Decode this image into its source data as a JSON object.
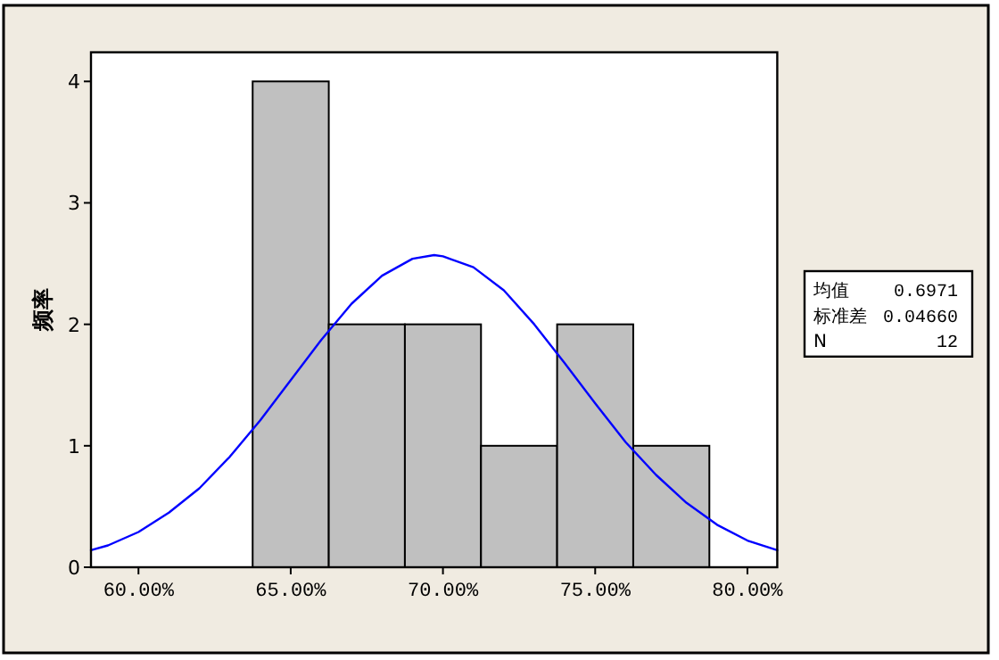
{
  "chart_data": {
    "type": "histogram",
    "ylabel": "频率",
    "series": [
      {
        "bins": [
          63.75,
          66.25,
          68.75,
          71.25,
          73.75,
          76.25,
          78.75
        ],
        "values": [
          4,
          2,
          2,
          1,
          2,
          1
        ],
        "color": "#c0c0c0"
      },
      {
        "type": "line",
        "color": "#0000ff",
        "x": [
          58.44,
          59,
          60,
          61,
          62,
          63,
          64,
          65,
          66,
          67,
          68,
          69,
          69.71,
          70,
          71,
          72,
          73,
          74,
          75,
          76,
          77,
          78,
          79,
          80,
          80.98
        ],
        "values": [
          0.14,
          0.18,
          0.29,
          0.45,
          0.65,
          0.91,
          1.21,
          1.54,
          1.87,
          2.17,
          2.4,
          2.54,
          2.57,
          2.56,
          2.47,
          2.28,
          2.0,
          1.68,
          1.35,
          1.03,
          0.76,
          0.53,
          0.35,
          0.22,
          0.14
        ]
      }
    ],
    "xlim": [
      58.44,
      80.98
    ],
    "ylim": [
      0,
      4.24
    ],
    "xticks": [
      {
        "value": 60,
        "label": "60.00%"
      },
      {
        "value": 65,
        "label": "65.00%"
      },
      {
        "value": 70,
        "label": "70.00%"
      },
      {
        "value": 75,
        "label": "75.00%"
      },
      {
        "value": 80,
        "label": "80.00%"
      }
    ],
    "yticks": [
      0,
      1,
      2,
      3,
      4
    ],
    "annotations": [
      "均值",
      "0.6971",
      "标准差",
      "0.04660",
      "N",
      "12"
    ]
  }
}
